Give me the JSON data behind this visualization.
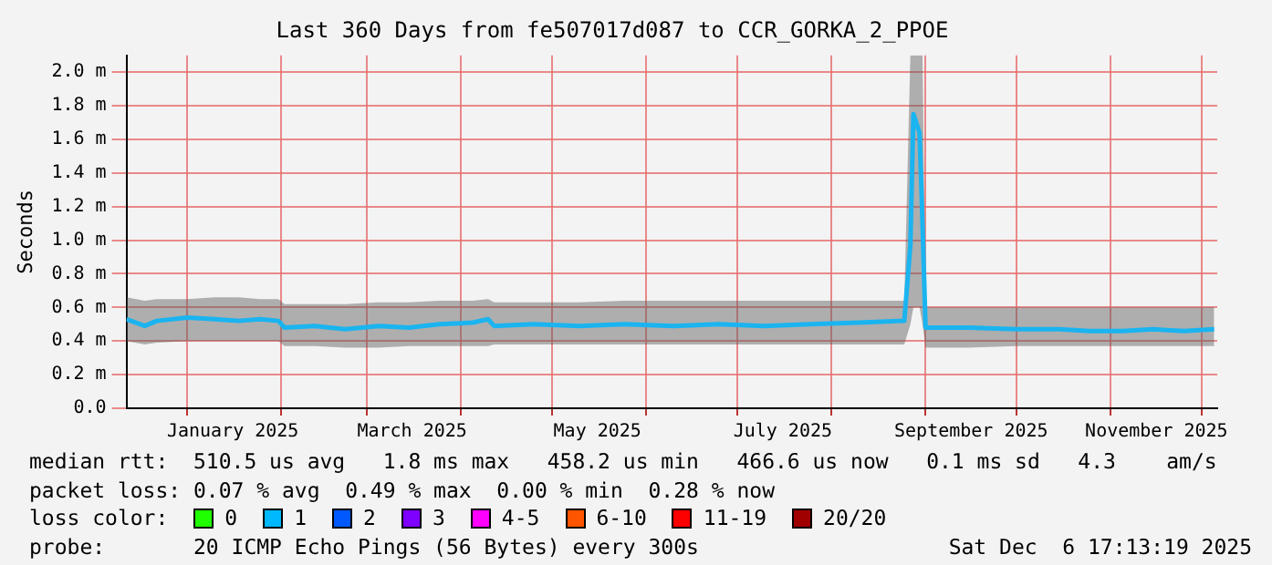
{
  "chart_data": {
    "type": "line",
    "title": "Last 360 Days from fe507017d087 to CCR_GORKA_2_PPOE",
    "ylabel": "Seconds",
    "x": [
      "2024-12-12",
      "2024-12-18",
      "2024-12-22",
      "2025-01-01",
      "2025-01-10",
      "2025-01-18",
      "2025-01-25",
      "2025-01-31",
      "2025-02-02",
      "2025-02-12",
      "2025-02-22",
      "2025-03-05",
      "2025-03-15",
      "2025-03-25",
      "2025-04-05",
      "2025-04-10",
      "2025-04-12",
      "2025-04-25",
      "2025-05-10",
      "2025-05-25",
      "2025-06-10",
      "2025-06-25",
      "2025-07-10",
      "2025-07-25",
      "2025-08-10",
      "2025-08-25",
      "2025-08-27",
      "2025-08-28",
      "2025-08-30",
      "2025-08-31",
      "2025-09-01",
      "2025-09-15",
      "2025-10-01",
      "2025-10-15",
      "2025-10-25",
      "2025-11-05",
      "2025-11-15",
      "2025-11-25",
      "2025-12-05"
    ],
    "series": [
      {
        "color": "#1ab4f0",
        "values": [
          0.53,
          0.49,
          0.52,
          0.54,
          0.53,
          0.52,
          0.53,
          0.52,
          0.48,
          0.49,
          0.47,
          0.49,
          0.48,
          0.5,
          0.51,
          0.53,
          0.49,
          0.5,
          0.49,
          0.5,
          0.49,
          0.5,
          0.49,
          0.5,
          0.51,
          0.52,
          0.97,
          1.75,
          1.64,
          1.1,
          0.48,
          0.48,
          0.47,
          0.47,
          0.46,
          0.46,
          0.47,
          0.46,
          0.47
        ],
        "lower": [
          0.4,
          0.38,
          0.39,
          0.4,
          0.4,
          0.4,
          0.4,
          0.4,
          0.37,
          0.37,
          0.36,
          0.36,
          0.37,
          0.37,
          0.37,
          0.37,
          0.38,
          0.38,
          0.38,
          0.38,
          0.38,
          0.38,
          0.38,
          0.38,
          0.38,
          0.38,
          0.5,
          0.6,
          0.6,
          0.5,
          0.36,
          0.36,
          0.37,
          0.37,
          0.37,
          0.37,
          0.37,
          0.37,
          0.37
        ],
        "upper": [
          0.66,
          0.64,
          0.65,
          0.65,
          0.66,
          0.66,
          0.65,
          0.65,
          0.62,
          0.62,
          0.62,
          0.63,
          0.63,
          0.64,
          0.64,
          0.65,
          0.63,
          0.63,
          0.63,
          0.64,
          0.64,
          0.64,
          0.64,
          0.64,
          0.64,
          0.64,
          2.1,
          2.1,
          2.1,
          2.1,
          0.6,
          0.6,
          0.6,
          0.6,
          0.6,
          0.6,
          0.6,
          0.6,
          0.6
        ]
      }
    ],
    "xlim": [
      "2024-12-12",
      "2025-12-06"
    ],
    "xticks": [
      {
        "value": "2025-01-01",
        "label": null
      },
      {
        "value": "2025-01-16",
        "label": "January 2025"
      },
      {
        "value": "2025-02-01",
        "label": null
      },
      {
        "value": "2025-03-01",
        "label": null
      },
      {
        "value": "2025-03-16",
        "label": "March 2025"
      },
      {
        "value": "2025-04-01",
        "label": null
      },
      {
        "value": "2025-05-01",
        "label": null
      },
      {
        "value": "2025-05-16",
        "label": "May 2025"
      },
      {
        "value": "2025-06-01",
        "label": null
      },
      {
        "value": "2025-07-01",
        "label": null
      },
      {
        "value": "2025-07-16",
        "label": "July 2025"
      },
      {
        "value": "2025-08-01",
        "label": null
      },
      {
        "value": "2025-09-01",
        "label": null
      },
      {
        "value": "2025-09-16",
        "label": "September 2025"
      },
      {
        "value": "2025-10-01",
        "label": null
      },
      {
        "value": "2025-11-01",
        "label": null
      },
      {
        "value": "2025-11-16",
        "label": "November 2025"
      },
      {
        "value": "2025-12-01",
        "label": null
      }
    ],
    "ylim": [
      0,
      2.1
    ],
    "yticks": [
      {
        "value": 0,
        "label": "0.0"
      },
      {
        "value": 0.2,
        "label": "0.2 m"
      },
      {
        "value": 0.4,
        "label": "0.4 m"
      },
      {
        "value": 0.6,
        "label": "0.6 m"
      },
      {
        "value": 0.8,
        "label": "0.8 m"
      },
      {
        "value": 1.0,
        "label": "1.0 m"
      },
      {
        "value": 1.2,
        "label": "1.2 m"
      },
      {
        "value": 1.4,
        "label": "1.4 m"
      },
      {
        "value": 1.6,
        "label": "1.6 m"
      },
      {
        "value": 1.8,
        "label": "1.8 m"
      },
      {
        "value": 2.0,
        "label": "2.0 m"
      }
    ],
    "grid": true,
    "legend": false,
    "marker": "none",
    "line_style": "solid",
    "annotations": [
      "median rtt:  510.5 us avg   1.8 ms max   458.2 us min   466.6 us now   0.1 ms sd   4.3    am/s",
      "packet loss: 0.07 % avg  0.49 % max  0.00 % min  0.28 % now",
      "loss color:",
      "0",
      "1",
      "2",
      "3",
      "4-5",
      "6-10",
      "11-19",
      "20/20",
      "probe:       20 ICMP Echo Pings (56 Bytes) every 300s",
      "Sat Dec  6 17:13:19 2025"
    ]
  }
}
